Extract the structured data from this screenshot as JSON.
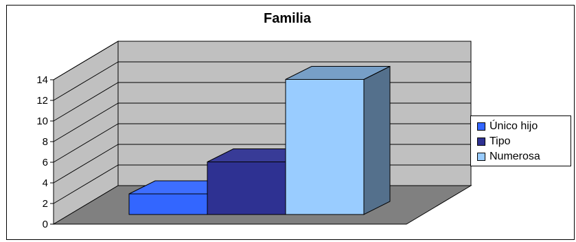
{
  "chart_data": {
    "type": "bar",
    "title": "Familia",
    "categories": [
      ""
    ],
    "series": [
      {
        "name": "Único hijo",
        "values": [
          2
        ],
        "color": "#3366ff"
      },
      {
        "name": "Tipo",
        "values": [
          5.1
        ],
        "color": "#2e3192"
      },
      {
        "name": "Numerosa",
        "values": [
          13.1
        ],
        "color": "#99ccff"
      }
    ],
    "yticks": [
      "0",
      "2",
      "4",
      "6",
      "8",
      "10",
      "12",
      "14"
    ],
    "ylim": [
      0,
      14
    ],
    "grid": true,
    "legend": "right",
    "wall_color": "#c0c0c0",
    "floor_color": "#808080"
  }
}
